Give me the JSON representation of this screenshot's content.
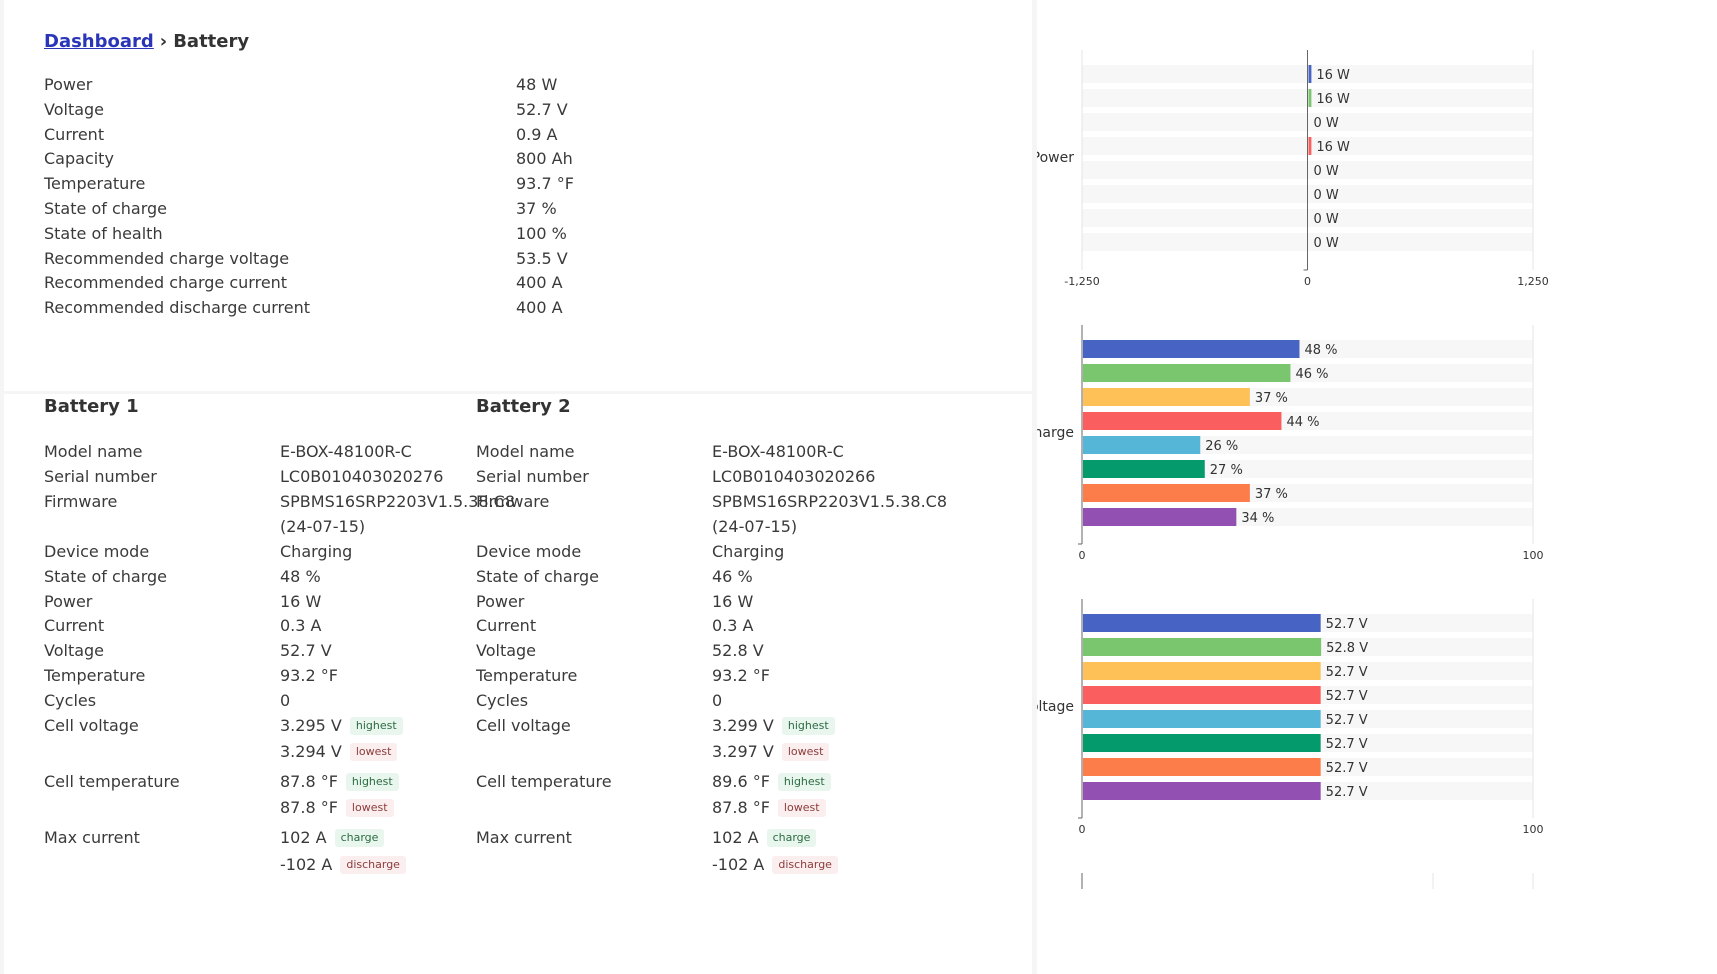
{
  "breadcrumb": {
    "link": "Dashboard",
    "separator": "›",
    "current": "Battery"
  },
  "summary": [
    {
      "label": "Power",
      "value": "48 W"
    },
    {
      "label": "Voltage",
      "value": "52.7 V"
    },
    {
      "label": "Current",
      "value": "0.9 A"
    },
    {
      "label": "Capacity",
      "value": "800 Ah"
    },
    {
      "label": "Temperature",
      "value": "93.7 °F"
    },
    {
      "label": "State of charge",
      "value": "37 %"
    },
    {
      "label": "State of health",
      "value": "100 %"
    },
    {
      "label": "Recommended charge voltage",
      "value": "53.5 V"
    },
    {
      "label": "Recommended charge current",
      "value": "400 A"
    },
    {
      "label": "Recommended discharge current",
      "value": "400 A"
    }
  ],
  "batteries": [
    {
      "title": "Battery 1",
      "model_name_label": "Model name",
      "model_name": "E-BOX-48100R-C",
      "serial_label": "Serial number",
      "serial": "LC0B010403020276",
      "firmware_label": "Firmware",
      "firmware_line1": "SPBMS16SRP2203V1.5.38.C8",
      "firmware_line2": "(24-07-15)",
      "device_mode_label": "Device mode",
      "device_mode": "Charging",
      "soc_label": "State of charge",
      "soc": "48 %",
      "power_label": "Power",
      "power": "16 W",
      "current_label": "Current",
      "current": "0.3 A",
      "voltage_label": "Voltage",
      "voltage": "52.7 V",
      "temperature_label": "Temperature",
      "temperature": "93.2 °F",
      "cycles_label": "Cycles",
      "cycles": "0",
      "cell_voltage_label": "Cell voltage",
      "cell_voltage_high": "3.295 V",
      "cell_voltage_low": "3.294 V",
      "cell_temp_label": "Cell temperature",
      "cell_temp_high": "87.8 °F",
      "cell_temp_low": "87.8 °F",
      "max_current_label": "Max current",
      "max_current_charge": "102 A",
      "max_current_discharge": "-102 A"
    },
    {
      "title": "Battery 2",
      "model_name_label": "Model name",
      "model_name": "E-BOX-48100R-C",
      "serial_label": "Serial number",
      "serial": "LC0B010403020266",
      "firmware_label": "Firmware",
      "firmware_line1": "SPBMS16SRP2203V1.5.38.C8",
      "firmware_line2": "(24-07-15)",
      "device_mode_label": "Device mode",
      "device_mode": "Charging",
      "soc_label": "State of charge",
      "soc": "46 %",
      "power_label": "Power",
      "power": "16 W",
      "current_label": "Current",
      "current": "0.3 A",
      "voltage_label": "Voltage",
      "voltage": "52.8 V",
      "temperature_label": "Temperature",
      "temperature": "93.2 °F",
      "cycles_label": "Cycles",
      "cycles": "0",
      "cell_voltage_label": "Cell voltage",
      "cell_voltage_high": "3.299 V",
      "cell_voltage_low": "3.297 V",
      "cell_temp_label": "Cell temperature",
      "cell_temp_high": "89.6 °F",
      "cell_temp_low": "87.8 °F",
      "max_current_label": "Max current",
      "max_current_charge": "102 A",
      "max_current_discharge": "-102 A"
    }
  ],
  "tags": {
    "highest": "highest",
    "lowest": "lowest",
    "charge": "charge",
    "discharge": "discharge"
  },
  "colors": [
    "#4763c4",
    "#79c66e",
    "#fdc158",
    "#fa5e5e",
    "#55b6d7",
    "#059a6c",
    "#fc7c4a",
    "#9250b3"
  ],
  "chart_data": [
    {
      "type": "bar",
      "ylabel": "Power",
      "values": [
        16,
        16,
        0,
        16,
        0,
        0,
        0,
        0
      ],
      "labels": [
        "16 W",
        "16 W",
        "0 W",
        "16 W",
        "0 W",
        "0 W",
        "0 W",
        "0 W"
      ],
      "xlim": [
        -1250,
        1250
      ],
      "ticks": [
        "-1,250",
        "0",
        "1,250"
      ]
    },
    {
      "type": "bar",
      "ylabel": "State of charge",
      "values": [
        48,
        46,
        37,
        44,
        26,
        27,
        37,
        34
      ],
      "labels": [
        "48 %",
        "46 %",
        "37 %",
        "44 %",
        "26 %",
        "27 %",
        "37 %",
        "34 %"
      ],
      "xlim": [
        0,
        100
      ],
      "ticks": [
        "0",
        "100"
      ]
    },
    {
      "type": "bar",
      "ylabel": "Voltage",
      "values": [
        52.7,
        52.8,
        52.7,
        52.7,
        52.7,
        52.7,
        52.7,
        52.7
      ],
      "labels": [
        "52.7 V",
        "52.8 V",
        "52.7 V",
        "52.7 V",
        "52.7 V",
        "52.7 V",
        "52.7 V",
        "52.7 V"
      ],
      "xlim": [
        0,
        100
      ],
      "ticks": [
        "0",
        "100"
      ]
    }
  ]
}
